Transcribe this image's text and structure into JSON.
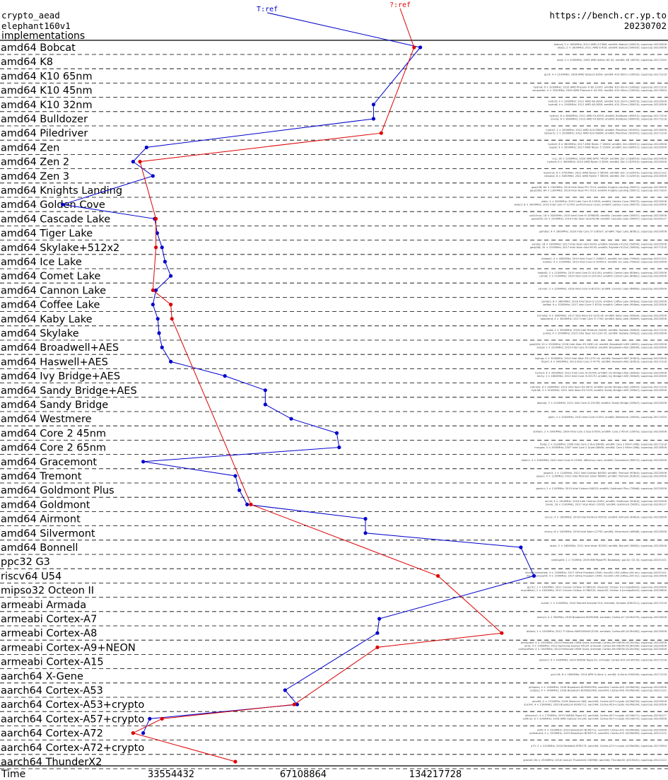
{
  "header": {
    "primitive": "crypto_aead",
    "algorithm": "elephant160v1",
    "section": "implementations",
    "site": "https://bench.cr.yp.to",
    "date": "20230702"
  },
  "colors": {
    "t_series": "#0000cc",
    "q_series": "#dd0000",
    "axis": "#000000",
    "grid": "#000000"
  },
  "chart_data": {
    "type": "line",
    "title": "",
    "xlabel": "Time",
    "x_ticks": [
      33554432,
      67108864,
      134217728
    ],
    "x_scale": "log2",
    "grid": "horizontal dashed",
    "series": [
      {
        "name": "T:ref",
        "points": [
          {
            "p": "amd64 Bobcat",
            "v": 124000000
          },
          {
            "p": "amd64 K10 32nm",
            "v": 97000000
          },
          {
            "p": "amd64 Bulldozer",
            "v": 97000000
          },
          {
            "p": "amd64 Zen",
            "v": 29500000
          },
          {
            "p": "amd64 Zen 2",
            "v": 27500000
          },
          {
            "p": "amd64 Zen 3",
            "v": 30500000
          },
          {
            "p": "amd64 Golden Cove",
            "v": 19000000
          },
          {
            "p": "amd64 Cascade Lake",
            "v": 30800000
          },
          {
            "p": "amd64 Tiger Lake",
            "v": 31200000
          },
          {
            "p": "amd64 Skylake+512x2",
            "v": 32000000
          },
          {
            "p": "amd64 Ice Lake",
            "v": 32500000
          },
          {
            "p": "amd64 Comet Lake",
            "v": 33500000
          },
          {
            "p": "amd64 Cannon Lake",
            "v": 31000000
          },
          {
            "p": "amd64 Coffee Lake",
            "v": 30500000
          },
          {
            "p": "amd64 Kaby Lake",
            "v": 31300000
          },
          {
            "p": "amd64 Skylake",
            "v": 31500000
          },
          {
            "p": "amd64 Broadwell+AES",
            "v": 32000000
          },
          {
            "p": "amd64 Haswell+AES",
            "v": 33500000
          },
          {
            "p": "amd64 Ivy Bridge+AES",
            "v": 44500000
          },
          {
            "p": "amd64 Sandy Bridge+AES",
            "v": 55000000
          },
          {
            "p": "amd64 Sandy Bridge",
            "v": 55000000
          },
          {
            "p": "amd64 Westmere",
            "v": 63000000
          },
          {
            "p": "amd64 Core 2 45nm",
            "v": 80000000
          },
          {
            "p": "amd64 Core 2 65nm",
            "v": 81000000
          },
          {
            "p": "amd64 Gracemont",
            "v": 29000000
          },
          {
            "p": "amd64 Tremont",
            "v": 47000000
          },
          {
            "p": "amd64 Goldmont Plus",
            "v": 48000000
          },
          {
            "p": "amd64 Goldmont",
            "v": 50000000
          },
          {
            "p": "amd64 Airmont",
            "v": 93000000
          },
          {
            "p": "amd64 Silvermont",
            "v": 93000000
          },
          {
            "p": "amd64 Bonnell",
            "v": 210000000
          },
          {
            "p": "riscv64 U54",
            "v": 225000000
          },
          {
            "p": "armeabi Cortex-A7",
            "v": 100000000
          },
          {
            "p": "armeabi Cortex-A8",
            "v": 99000000
          },
          {
            "p": "aarch64 Cortex-A53",
            "v": 61000000
          },
          {
            "p": "aarch64 Cortex-A53+crypto",
            "v": 65000000
          },
          {
            "p": "aarch64 Cortex-A57+crypto",
            "v": 30000000
          },
          {
            "p": "aarch64 Cortex-A72",
            "v": 29000000
          }
        ]
      },
      {
        "name": "?:ref",
        "points": [
          {
            "p": "amd64 Bobcat",
            "v": 120000000
          },
          {
            "p": "amd64 Piledriver",
            "v": 101000000
          },
          {
            "p": "amd64 Zen 2",
            "v": 28500000
          },
          {
            "p": "amd64 Cascade Lake",
            "v": 31000000
          },
          {
            "p": "amd64 Skylake+512x2",
            "v": 31000000
          },
          {
            "p": "amd64 Cannon Lake",
            "v": 30500000
          },
          {
            "p": "amd64 Coffee Lake",
            "v": 33500000
          },
          {
            "p": "amd64 Kaby Lake",
            "v": 33700000
          },
          {
            "p": "amd64 Goldmont",
            "v": 51000000
          },
          {
            "p": "riscv64 U54",
            "v": 136000000
          },
          {
            "p": "armeabi Cortex-A8",
            "v": 190000000
          },
          {
            "p": "armeabi Cortex-A9+NEON",
            "v": 99000000
          },
          {
            "p": "aarch64 Cortex-A53+crypto",
            "v": 64000000
          },
          {
            "p": "aarch64 Cortex-A57+crypto",
            "v": 32000000
          },
          {
            "p": "aarch64 Cortex-A72",
            "v": 27500000
          },
          {
            "p": "aarch64 ThunderX2",
            "v": 47000000
          }
        ]
      }
    ],
    "rows": [
      {
        "label": "amd64 Bobcat",
        "machines": [
          "bobcat; 2 × 1600MHz; 2011 AMD G-T56N; amd64; Bobcat (500f10); supercop-20220506",
          "bkat2; 2 × 1600MHz; 2011 AMD E-450; amd64; Bobcat (500f20); supercop-20220506"
        ]
      },
      {
        "label": "amd64 K8",
        "machines": [
          "boot; 2 × 2000MHz; 2005 AMD Athlon 64 X2; amd64; K8 (40f32); supercop-20171020"
        ]
      },
      {
        "label": "amd64 K10 65nm",
        "machines": [
          "gcc4; 4 × 2100MHz; 2008 AMD Opteron 8354; amd64; K10 65nm (100f23); supercop-20171218"
        ]
      },
      {
        "label": "amd64 K10 45nm",
        "machines": [
          "hydra4; 6 × 3200MHz; 2010 AMD Phenom II X6 1100T; amd64; K10 45nm (100fa0); supercop-20171218",
          "nonspeller; 4 × 3200MHz; 2009 AMD Phenom II X4 955; amd64; K10 45nm (100f42); supercop-20170904"
        ]
      },
      {
        "label": "amd64 K10 32nm",
        "machines": [
          "hydra5; 4 × 2900MHz; 2011 AMD A8-3850; amd64; K10 32nm (300f10); supercop-20220506",
          "hydra6; 4 × 2900MHz; 2011 AMD A8-3850; amd64; K10 32nm (300f10); supercop-20220506"
        ]
      },
      {
        "label": "amd64 Bulldozer",
        "machines": [
          "hydra1; 8 × 3600MHz; 2011 AMD FX-8150; amd64; Bulldozer (600f12); supercop-20171218",
          "urania; 8 × 3600MHz; 2013 AMD FX-8350; amd64; Bulldozer (600f20); supercop-20171218"
        ]
      },
      {
        "label": "amd64 Piledriver",
        "machines": [
          "hydra7; 2 × 3500MHz; 2012 AMD A10-5800K; amd64; Piledriver (610f01); supercop-20220506",
          "bbinarin; 2 × 3500MHz; 2012 AMD A10-5800K; amd64; Piledriver (610f01); supercop-20171218"
        ]
      },
      {
        "label": "amd64 Zen",
        "machines": [
          "hydra5; 8 × 3600MHz; 2017 AMD Ryzen 7 1800X; amd64; Zen (800f11); supercop-20220506",
          "lagrat; 4 × 3500MHz; 2017 AMD Ryzen 5 1500X; amd64; Zen (800f11); supercop-20220506"
        ]
      },
      {
        "label": "amd64 Zen 2",
        "machines": [
          "nuc; 16 × 2300MHz; 2020 AMD EPYC 7402P; amd64; Zen 2 (830f10); supercop-20220506",
          "hydra9; 6 × 3600MHz; 2019 AMD Ryzen 5 3600; amd64; Zen 2 (870f10); supercop-20220506"
        ]
      },
      {
        "label": "amd64 Zen 3",
        "machines": [
          "hazelnut; 6 × 3700MHz; 2021 AMD Ryzen 5 5600X; amd64; Zen 3 (a20f10); supercop-20221122",
          "cassava; 8 × 3400MHz; 2021 AMD Ryzen 7 5800X; amd64; Zen 3 (a20f10); supercop-20220506"
        ]
      },
      {
        "label": "amd64 Knights Landing",
        "machines": [
          "gaaj106; 64 × 1300MHz; 2016 Intel Xeon Phi 7210; amd64; Knights Landing (50671); supercop-20220506",
          "gaaj106s; 64 × 1300MHz; 2016 Intel Xeon Phi 7210; amd64; Knights Landing (50671); supercop-20171020"
        ]
      },
      {
        "label": "amd64 Golden Cove",
        "machines": [
          "alder; 4 × 3000MHz; 2022 Intel Core i9-12900; amd64; Golden Cove (90672); supercop-20220506",
          "alder2; 8 × 3400MHz; 2022 Intel Core i7-12700; performance cores; amd64; Golden Cove (90675); supercop-20220506"
        ]
      },
      {
        "label": "amd64 Cascade Lake",
        "machines": [
          "ucd1linux; 18 × 3000MHz; 2019 Intel Core i9-10980XE; amd64; Cascade Lake (50657); supercop-20220506",
          "gaaa926; 20 × 2500MHz; 2019 Intel Xeon Gold 6248; amd64; Cascade Lake (50657); supercop-20200127"
        ]
      },
      {
        "label": "amd64 Tiger Lake",
        "machines": [
          "gamber; 4 × 2800MHz; 2020 Intel Core i7-1165G7; amd64; Tiger Lake (806c1); supercop-20220506"
        ]
      },
      {
        "label": "amd64 Skylake+512x2",
        "machines": [
          "samba; 18 × 2300MHz; 2017 Intel Xeon Gold 6140; amd64; Skylake+512x2 (50654); supercop-20220506",
          "gaaj046; 20 × 2100MHz; 2017 Intel Xeon Gold 6130; amd64; Skylake+512x2 (50654); supercop-20171218"
        ]
      },
      {
        "label": "amd64 Ice Lake",
        "machines": [
          "icelake1; 4 × 2600MHz; 2019 Intel Core i7-1065G7; amd64; Ice Lake (706e5); supercop-20221122",
          "icelake; 4 × 1100MHz; 2019 Intel Core i3-1005G1; amd64; Ice Lake (706e5); supercop-20220506"
        ]
      },
      {
        "label": "amd64 Comet Lake",
        "machines": [
          "hobbit2; 2 × 2100MHz; 2019 Intel Core i3-10110U; amd64; Comet Lake (806ec); supercop-20220506",
          "comet; 2 × 2100MHz; 2019 Intel Core i3-10110U; amd64; Comet Lake (806ec); supercop-20220506"
        ]
      },
      {
        "label": "amd64 Cannon Lake",
        "machines": [
          "cannon; 2 × 2200MHz; 2018 Intel Core i3-8121U; amd64; Cannon Lake (60663); supercop-20220506"
        ]
      },
      {
        "label": "amd64 Coffee Lake",
        "machines": [
          "panda1; 8 × 3600MHz; 2018 Intel Xeon E-2124; amd64; Coffee Lake (906ea); supercop-20220506",
          "koffee; 6 × 3200MHz; 2017 Intel Core i7-8700; amd64; Coffee Lake (906ea); supercop-20220506"
        ]
      },
      {
        "label": "amd64 Kaby Lake",
        "machines": [
          "hsmaha; 4 × 3000MHz; 2017 Intel Xeon E3-1220 v6; amd64; Kaby Lake (906e9); supercop-20220506",
          "abackand; 4 × 3000MHz; 2017 Intel Core i7-7700; amd64; Kaby Lake (906e9); supercop-20220506"
        ]
      },
      {
        "label": "amd64 Skylake",
        "machines": [
          "nuad; 2 × 3900MHz; 2016 Intel Pentium G4400; amd64; Skylake (506e3); supercop-20171218",
          "pukka; 4 × 3500MHz; 2015 Intel Xeon E3-1220 v5; amd64; Skylake (506e3); supercop-20220506"
        ]
      },
      {
        "label": "amd64 Broadwell+AES",
        "machines": [
          "gaaj106; 20 × 2200MHz; 2016 Intel Xeon E5-2630 v4; amd64; Broadwell+AES (406f1); supercop-20220506",
          "broad; 2 × 2200MHz; 2015 Intel Core i5-5200U; amd64; Broadwell+AES (306d4); supercop-20220506"
        ]
      },
      {
        "label": "amd64 Haswell+AES",
        "machines": [
          "hiphop; 4 × 3500MHz; 2014 Intel Xeon E3-1275 v3; amd64; Haswell+AES (306c3); supercop-20220506",
          "titan0; 4 × 3400MHz; 2013 Intel Core i7-4770; amd64; Haswell+AES (306c3); supercop-20171218"
        ]
      },
      {
        "label": "amd64 Ivy Bridge+AES",
        "machines": [
          "hydra3; 4 × 3500MHz; 2012 Intel Core i5-3570K; amd64; Ivy Bridge+AES (306a9); supercop-20220506",
          "berry; 2 × 1800MHz; 2012 Intel Core i3-3217U; amd64; Ivy Bridge+AES (306a9); supercop-20220506"
        ]
      },
      {
        "label": "amd64 Sandy Bridge+AES",
        "machines": [
          "cobra2k; 8 × 2600MHz; 2013 Intel Xeon E5-2670; amd64; Sandy Bridge+AES (206d7); supercop-20171218",
          "hydra8; 4 × 3100MHz; 2011 Intel Xeon E3-1220; amd64; Sandy Bridge+AES (206a7); supercop-20220506"
        ]
      },
      {
        "label": "amd64 Sandy Bridge",
        "machines": [
          "bbandy; 2 × 2100MHz; 2011 Intel Core i3-2310M; amd64; Sandy Bridge (206a7); supercop-20220506"
        ]
      },
      {
        "label": "amd64 Westmere",
        "machines": [
          "gloin; 2 × 3200MHz; 2010 Intel Core i3-550; amd64; Westmere (20655); supercop-20171020"
        ]
      },
      {
        "label": "amd64 Core 2 45nm",
        "machines": [
          "utrillain; 2 × 2000MHz; 2009 Intel Core 2 Duo E7500; amd64; Core 2 45nm (1067a); supercop-20220506"
        ]
      },
      {
        "label": "amd64 Core 2 65nm",
        "machines": [
          "frodo; 2 × 2333MHz; 2006 Intel Core 2 Duo E6440; amd64; Core 2 65nm (6fb); supercop-20171218",
          "morgan; 4 × 2400MHz; 2007 Intel Core 2 Quad Q6600; amd64; Core 2 65nm (6fb); supercop-20220506"
        ]
      },
      {
        "label": "amd64 Gracemont",
        "machines": [
          "alder1; 4 × 3000MHz; 2022 Intel Core i9-12900; efficiency core; amd64; Gracemont (90672); supercop-20220506"
        ]
      },
      {
        "label": "amd64 Tremont",
        "machines": [
          "jasper2; 2 × 1100MHz; 2021 Intel Celeron N4500; amd64; Tremont (906c0); supercop-20220506",
          "jasper; 4 × 1100MHz; 2021 Intel Pentium Silver N6000; amd64; Tremont (906c0); supercop-20220506"
        ]
      },
      {
        "label": "amd64 Goldmont Plus",
        "machines": [
          "gemini; 2 × 1100MHz; 2019 Intel Celeron N4020; amd64; Goldmont Plus (706a8); supercop-20220506"
        ]
      },
      {
        "label": "amd64 Goldmont",
        "machines": [
          "annie; 4 × 1500MHz; 2016 Intel Celeron J3455; amd64; Goldmont (506c9); supercop-20220506",
          "sivvie; 16 × 2100MHz; 2017 Intel Atom C3955; amd64; Goldmont (506f1); supercop-20200127"
        ]
      },
      {
        "label": "amd64 Airmont",
        "machines": [
          "ennuc; 4 × 1600MHz; 2016 Intel Pentium N3700; amd64; Airmont (406c4); supercop-20220506"
        ]
      },
      {
        "label": "amd64 Silvermont",
        "machines": [
          "cherry; 8 × 2400MHz; 2016 Intel Atom C2750; amd64; Silvermont (406d8); supercop-20220506"
        ]
      },
      {
        "label": "amd64 Bonnell",
        "machines": [
          "atom; 2 × 1600MHz; 2011 Intel Atom D2550; amd64; Bonnell (30661); supercop-20220506"
        ]
      },
      {
        "label": "ppc32 G3",
        "machines": [
          "nottinghill; 1 × 724MHz; 2009 IBM PowerPC Broadway; ppc32; G3 (0); supercop-20201101"
        ]
      },
      {
        "label": "riscv64 U54",
        "machines": [
          "riscv64unleashed; 4 × 1500MHz; 2017 SiFive Freedom U540; riscv64; U54 (sifive,u54-mc); supercop-20201101",
          "riscv64unleash4; 4 × 1500MHz; 2017 SiFive Freedom U540; riscv64; U54 (sifive,u54-mc); supercop-20220506"
        ]
      },
      {
        "label": "mipso32 Octeon II",
        "machines": [
          "gcc31; 1 × 1000MHz; 2011 Cavium Octeon II CN6120; mipso32; Octeon II (cnmips64v2); supercop-20220506",
          "erpro8fsa2; 2 × 1000MHz; 2011 Cavium Octeon II CN6120; mipso32; Octeon II (cnmips64v2); supercop-20200826"
        ]
      },
      {
        "label": "armeabi Armada",
        "machines": [
          "scarbi; 1 × 1200MHz; 2010 Marvell Armada 510; armeabi; Armada (56f1311); supercop-20171218"
        ]
      },
      {
        "label": "armeabi Cortex-A7",
        "machines": [
          "beery2; 4 × 900MHz; 2016 Broadcom BCM2836; armeabi; Cortex-A7 (410fc075); supercop-20220506"
        ]
      },
      {
        "label": "armeabi Cortex-A8",
        "machines": [
          "bblack; 1 × 1000MHz; 2012 TI Sitara XAM3359AZCZ100; armeabi; Cortex-A8 (413fc082); supercop-20220506"
        ]
      },
      {
        "label": "armeabi Cortex-A9+NEON",
        "machines": [
          "terracotta; 4 × 1000MHz; 2014 Freescale i.MX6 Quad; armeabi; Cortex-A9+NEON (412fc09a); supercop-20220506",
          "arria; 4 × 1000MHz; 2013 Samsung Exynos 4412P; armeabi; Cortex-A9+NEON (413fc090); supercop-20220506",
          "cortexa9stb; 4 × 1000MHz; 2014 Freescale i.MX6 Quad; armeabi; Cortex-A9+NEON (412fc09a); supercop-20220506"
        ]
      },
      {
        "label": "armeabi Cortex-A15",
        "machines": [
          "jetson1; 4 × 2040MHz; 2014 NVIDIA Tegra K1; armeabi; Cortex-A15 (413fc0f3); supercop-20171218"
        ]
      },
      {
        "label": "aarch64 X-Gene",
        "machines": [
          "gcc116; 8 × 1600MHz; 2014 APM X-Gene 1; arm64; X-Gene (500000); supercop-20171218"
        ]
      },
      {
        "label": "aarch64 Cortex-A53",
        "machines": [
          "pi3aplus; 4 × 1400MHz; 2018 Broadcom BCM2837B0; aarch64; Cortex-A53 (410fd034); supercop-20220506",
          "pi3plus; 4 × 1400MHz; 2018 Broadcom BCM2837B0; aarch64; Cortex-A53 (410fd034); supercop-20221122"
        ]
      },
      {
        "label": "aarch64 Cortex-A53+crypto",
        "machines": [
          "pine64; 4 × 1152MHz; 2016 Allwinner A64; aarch64; Cortex-A53+crypto (410fd034); supercop-20220506",
          "rpicm4; 4 × 1500MHz; 2020 Broadcom BCM2711; aarch64; Cortex-A53+crypto (410fd034); supercop-20220506"
        ]
      },
      {
        "label": "aarch64 Cortex-A57+crypto",
        "machines": [
          "jetsonnx1; 4 × 1734MHz; 2015 NVIDIA Tegra X1; aarch64; Cortex-A57+crypto (411fd071); supercop-20200127",
          "softiron; 8 × 2000MHz; 2016 AMD Opteron A1100; aarch64; Cortex-A57+crypto (411fd072); supercop-20220506"
        ]
      },
      {
        "label": "aarch64 Cortex-A72",
        "machines": [
          "pi4b; 4 × 1500MHz; 2019 Broadcom BCM2711; aarch64; Cortex-A72 (410fd083); supercop-20220506",
          "rpi4sdcard; 4 × 1500MHz; 2019 Broadcom BCM2711; aarch64; Cortex-A72 (410fd083); supercop-20221122"
        ]
      },
      {
        "label": "aarch64 Cortex-A72+crypto",
        "machines": [
          "a72; 2 × 2100MHz; 2016 Mediatek MT8173; aarch64; Cortex-A72+crypto (410fd080); supercop-20170904"
        ]
      },
      {
        "label": "aarch64 ThunderX2",
        "machines": [
          "gracia0; 64 × 2500MHz; 2018 Cavium ThunderX2 CN9980; aarch64; ThunderX2 (431f0af1); supercop-20221122"
        ]
      }
    ]
  }
}
